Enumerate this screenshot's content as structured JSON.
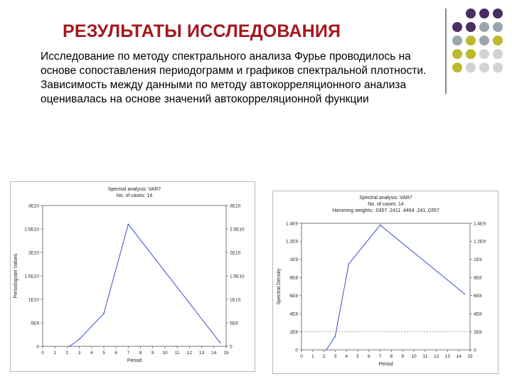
{
  "slide": {
    "title": "РЕЗУЛЬТАТЫ ИССЛЕДОВАНИЯ",
    "paragraphs": [
      "Исследование по методу спектрального анализа Фурье проводилось на основе сопоставления периодограмм и графиков спектральной плотности.",
      "Зависимость между данными по методу автокорреляционного анализа оценивалась на основе значений автокорреляционной функции"
    ]
  },
  "colors": {
    "title": "#a3181e",
    "purple": "#4a2d63",
    "olive": "#bdb92a",
    "gray_blue": "#9aa6ab",
    "light_gray": "#d2d3d6",
    "line": "#3a4fd4"
  },
  "decor_dot_colors": [
    [
      "purple",
      "purple",
      "purple"
    ],
    [
      "purple",
      "purple",
      "gray_blue",
      "gray_blue"
    ],
    [
      "gray_blue",
      "olive",
      "gray_blue",
      "olive"
    ],
    [
      "olive",
      "olive",
      "light_gray",
      "light_gray"
    ],
    [
      "olive",
      "light_gray",
      "light_gray",
      "light_gray"
    ]
  ],
  "chart_data": [
    {
      "type": "line",
      "title_lines": [
        "Spectral analysis: VAR7",
        "No. of cases: 14"
      ],
      "xlabel": "Period",
      "ylabel": "Periodogram Values",
      "x_ticks": [
        "0",
        "1",
        "2",
        "3",
        "4",
        "5",
        "6",
        "7",
        "8",
        "9",
        "10",
        "11",
        "12",
        "13",
        "14",
        "15"
      ],
      "y_ticks_left": [
        "0",
        "5E9",
        "1E10",
        "1.5E10",
        "2E10",
        "2.5E10",
        "3E10"
      ],
      "y_ticks_right": [
        "0",
        "5E9",
        "1E10",
        "1.5E10",
        "2E10",
        "2.5E10",
        "3E10"
      ],
      "xlim": [
        0,
        15
      ],
      "ylim": [
        0,
        30000000000
      ],
      "series": [
        {
          "x": [
            2.2,
            3,
            5,
            7,
            14.5
          ],
          "y": [
            0,
            1500000000,
            7000000000,
            26000000000,
            800000000
          ]
        }
      ]
    },
    {
      "type": "line",
      "title_lines": [
        "Spectral analysis: VAR7",
        "No. of cases: 14",
        "Hamming weights: .0357 .2411 .4464 .241 .0357"
      ],
      "xlabel": "Period",
      "ylabel": "Spectral Density",
      "x_ticks": [
        "0",
        "1",
        "2",
        "3",
        "4",
        "5",
        "6",
        "7",
        "8",
        "9",
        "10",
        "11",
        "12",
        "13",
        "14",
        "15"
      ],
      "y_ticks_left": [
        "0",
        "2E8",
        "4E8",
        "6E8",
        "8E8",
        "1E9",
        "1.2E9",
        "1.4E9"
      ],
      "y_ticks_right": [
        "0",
        "2E8",
        "4E8",
        "6E8",
        "8E8",
        "1E9",
        "1.2E9",
        "1.4E9"
      ],
      "xlim": [
        0,
        15
      ],
      "ylim": [
        0,
        1400000000
      ],
      "series": [
        {
          "x": [
            2.2,
            3,
            4.2,
            7,
            14.5
          ],
          "y": [
            0,
            150000000,
            950000000,
            1380000000,
            620000000
          ]
        }
      ]
    }
  ]
}
